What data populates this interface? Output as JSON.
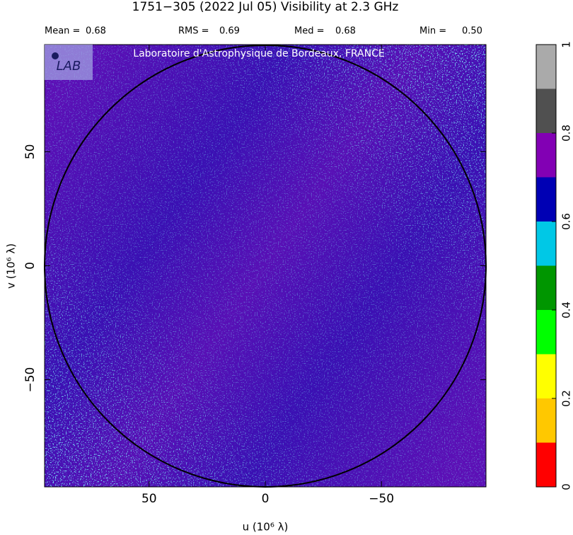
{
  "chart_data": {
    "type": "image",
    "title": "1751−305  (2022 Jul 05)   Visibility at  2.3 GHz",
    "stats": [
      {
        "label": "Mean =",
        "value": 0.68
      },
      {
        "label": "RMS =",
        "value": 0.69
      },
      {
        "label": "Med =",
        "value": 0.68
      },
      {
        "label": "Min =",
        "value": 0.5,
        "value_label": "0.50"
      }
    ],
    "watermark": "Laboratoire d'Astrophysique de Bordeaux, FRANCE",
    "logo": "LAB",
    "xlabel": "u  (10⁶ λ)",
    "ylabel": "v  (10⁶ λ)",
    "xlim": [
      95,
      -95
    ],
    "ylim": [
      97,
      -97
    ],
    "xticks": [
      50,
      0,
      {
        "value": -50,
        "label": "−50"
      }
    ],
    "yticks": [
      50,
      0,
      {
        "value": -50,
        "label": "−50"
      }
    ],
    "colorbar": {
      "levels": [
        0,
        0.1,
        0.2,
        0.3,
        0.4,
        0.5,
        0.6,
        0.7,
        0.8,
        0.9,
        1
      ],
      "colors": [
        "#ff0000",
        "#ffc800",
        "#ffff00",
        "#00ff00",
        "#009600",
        "#00c8e6",
        "#0000b4",
        "#8200b4",
        "#505050",
        "#aaaaaa"
      ],
      "ticks": [
        0,
        0.2,
        0.4,
        0.6,
        0.8,
        1
      ]
    }
  }
}
